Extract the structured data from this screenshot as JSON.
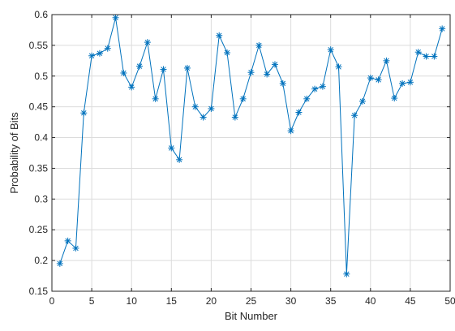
{
  "chart_data": {
    "type": "line",
    "title": "",
    "xlabel": "Bit Number",
    "ylabel": "Probability of Bits",
    "xlim": [
      0,
      50
    ],
    "ylim": [
      0.15,
      0.6
    ],
    "xticks": [
      "0",
      "5",
      "10",
      "15",
      "20",
      "25",
      "30",
      "35",
      "40",
      "45",
      "50"
    ],
    "yticks": [
      "0.15",
      "0.2",
      "0.25",
      "0.3",
      "0.35",
      "0.4",
      "0.45",
      "0.5",
      "0.55",
      "0.6"
    ],
    "grid": true,
    "marker": "asterisk",
    "series": [
      {
        "color": "#0072BD",
        "x": [
          1,
          2,
          3,
          4,
          5,
          6,
          7,
          8,
          9,
          10,
          11,
          12,
          13,
          14,
          15,
          16,
          17,
          18,
          19,
          20,
          21,
          22,
          23,
          24,
          25,
          26,
          27,
          28,
          29,
          30,
          31,
          32,
          33,
          34,
          35,
          36,
          37,
          38,
          39,
          40,
          41,
          42,
          43,
          44,
          45,
          46,
          47,
          48,
          49
        ],
        "y": [
          0.195,
          0.232,
          0.22,
          0.44,
          0.533,
          0.537,
          0.545,
          0.595,
          0.505,
          0.482,
          0.516,
          0.555,
          0.463,
          0.511,
          0.383,
          0.364,
          0.513,
          0.45,
          0.433,
          0.447,
          0.566,
          0.538,
          0.433,
          0.463,
          0.506,
          0.55,
          0.503,
          0.519,
          0.488,
          0.411,
          0.441,
          0.463,
          0.479,
          0.483,
          0.543,
          0.515,
          0.178,
          0.436,
          0.459,
          0.497,
          0.494,
          0.525,
          0.464,
          0.488,
          0.49,
          0.539,
          0.532,
          0.532,
          0.577
        ]
      }
    ]
  }
}
